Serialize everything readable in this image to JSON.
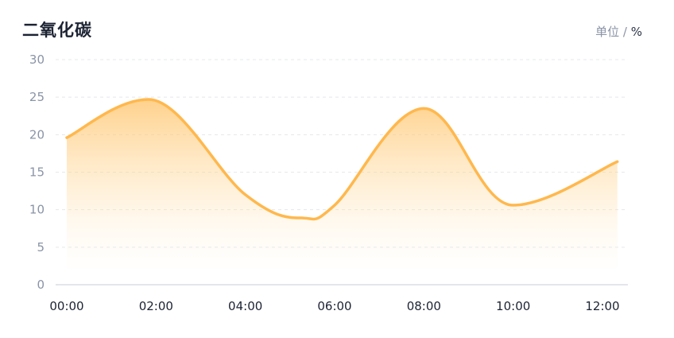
{
  "header": {
    "title": "二氧化碳",
    "unit_label": "单位",
    "unit_separator": "/",
    "unit_symbol": "%"
  },
  "chart_data": {
    "type": "area",
    "title": "二氧化碳",
    "ylabel": "单位 / %",
    "xlabel": "",
    "x": [
      "00:00",
      "01:50",
      "04:00",
      "05:15",
      "06:00",
      "08:00",
      "10:00",
      "12:20"
    ],
    "values": [
      19.6,
      24.7,
      12.0,
      8.9,
      10.6,
      23.5,
      10.6,
      16.4
    ],
    "x_tick_labels": [
      "00:00",
      "02:00",
      "04:00",
      "06:00",
      "08:00",
      "10:00",
      "12:00"
    ],
    "y_tick_labels": [
      "0",
      "5",
      "10",
      "15",
      "20",
      "25",
      "30"
    ],
    "ylim": [
      0,
      30
    ],
    "grid": true,
    "line_color": "#ffb84d",
    "fill_color": "#ffcc80",
    "series": [
      {
        "values": [
          19.6,
          24.7,
          12.0,
          8.9,
          10.6,
          23.5,
          10.6,
          16.4
        ]
      }
    ]
  }
}
